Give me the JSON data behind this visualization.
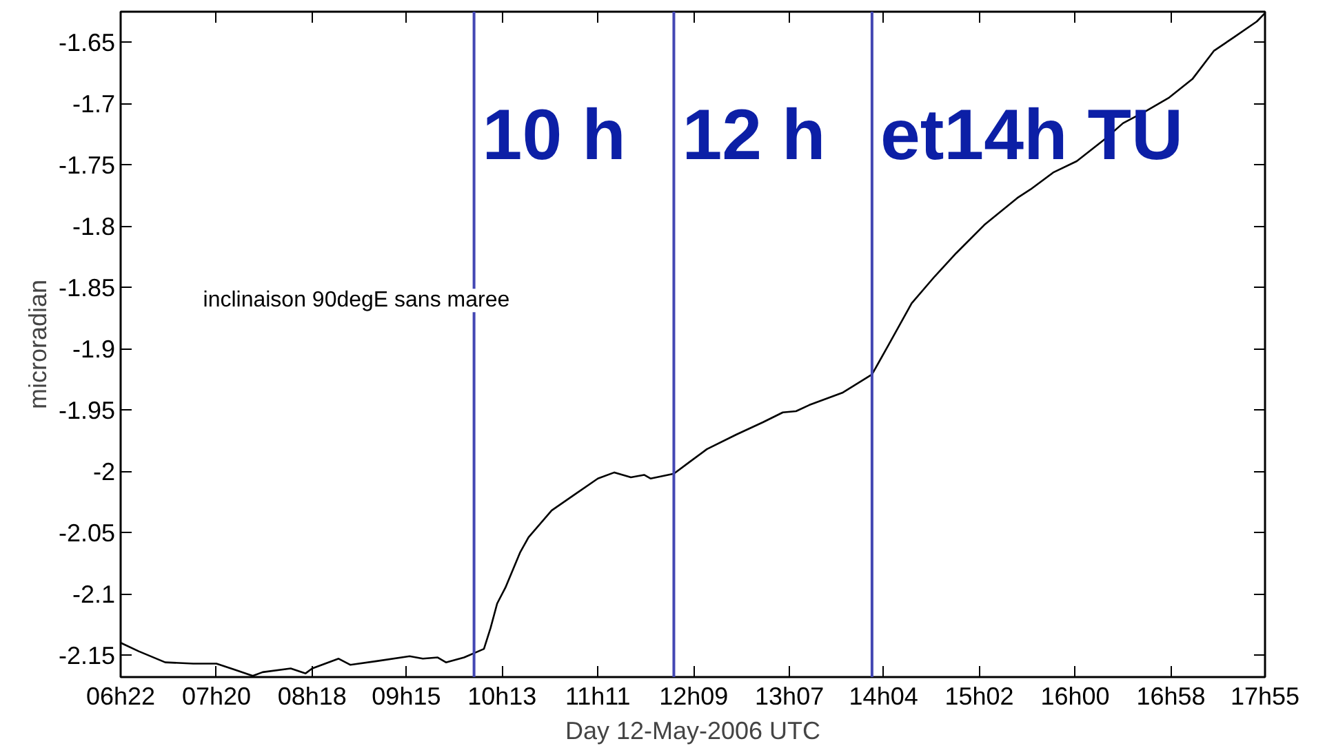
{
  "chart_data": {
    "type": "line",
    "xlabel": "Day 12-May-2006 UTC",
    "ylabel": "microradian",
    "line_style": "solid",
    "x": [
      "2006-05-12T06:22",
      "2006-05-12T06:33",
      "2006-05-12T06:49",
      "2006-05-12T07:06",
      "2006-05-12T07:20",
      "2006-05-12T07:31",
      "2006-05-12T07:42",
      "2006-05-12T07:48",
      "2006-05-12T08:05",
      "2006-05-12T08:14",
      "2006-05-12T08:18",
      "2006-05-12T08:34",
      "2006-05-12T08:41",
      "2006-05-12T08:57",
      "2006-05-12T09:17",
      "2006-05-12T09:25",
      "2006-05-12T09:34",
      "2006-05-12T09:39",
      "2006-05-12T09:50",
      "2006-05-12T10:02",
      "2006-05-12T10:06",
      "2006-05-12T10:10",
      "2006-05-12T10:15",
      "2006-05-12T10:24",
      "2006-05-12T10:29",
      "2006-05-12T10:43",
      "2006-05-12T10:57",
      "2006-05-12T11:11",
      "2006-05-12T11:21",
      "2006-05-12T11:31",
      "2006-05-12T11:39",
      "2006-05-12T11:43",
      "2006-05-12T11:50",
      "2006-05-12T11:57",
      "2006-05-12T12:07",
      "2006-05-12T12:17",
      "2006-05-12T12:35",
      "2006-05-12T12:51",
      "2006-05-12T13:03",
      "2006-05-12T13:11",
      "2006-05-12T13:19",
      "2006-05-12T13:39",
      "2006-05-12T13:57",
      "2006-05-12T14:07",
      "2006-05-12T14:21",
      "2006-05-12T14:35",
      "2006-05-12T14:48",
      "2006-05-12T15:05",
      "2006-05-12T15:25",
      "2006-05-12T15:33",
      "2006-05-12T15:47",
      "2006-05-12T16:01",
      "2006-05-12T16:18",
      "2006-05-12T16:29",
      "2006-05-12T16:43",
      "2006-05-12T16:57",
      "2006-05-12T17:11",
      "2006-05-12T17:24",
      "2006-05-12T17:36",
      "2006-05-12T17:50",
      "2006-05-12T17:55"
    ],
    "series": [
      {
        "color": "#000000",
        "values": [
          -2.14,
          -2.147,
          -2.156,
          -2.157,
          -2.157,
          -2.162,
          -2.167,
          -2.164,
          -2.161,
          -2.165,
          -2.161,
          -2.153,
          -2.158,
          -2.155,
          -2.151,
          -2.153,
          -2.152,
          -2.156,
          -2.152,
          -2.145,
          -2.128,
          -2.108,
          -2.095,
          -2.066,
          -2.054,
          -2.032,
          -2.019,
          -2.006,
          -2.001,
          -2.005,
          -2.003,
          -2.006,
          -2.004,
          -2.002,
          -1.992,
          -1.982,
          -1.97,
          -1.96,
          -1.952,
          -1.951,
          -1.946,
          -1.936,
          -1.921,
          -1.897,
          -1.863,
          -1.841,
          -1.822,
          -1.799,
          -1.777,
          -1.77,
          -1.756,
          -1.747,
          -1.729,
          -1.716,
          -1.706,
          -1.695,
          -1.68,
          -1.657,
          -1.646,
          -1.633,
          -1.626
        ]
      }
    ],
    "xlim": [
      "2006-05-12T06:22",
      "2006-05-12T17:55"
    ],
    "xticks": [
      {
        "value": "2006-05-12T06:22",
        "label": "06h22"
      },
      {
        "value": "2006-05-12T07:20",
        "label": "07h20"
      },
      {
        "value": "2006-05-12T08:18",
        "label": "08h18"
      },
      {
        "value": "2006-05-12T09:15",
        "label": "09h15"
      },
      {
        "value": "2006-05-12T10:13",
        "label": "10h13"
      },
      {
        "value": "2006-05-12T11:11",
        "label": "11h11"
      },
      {
        "value": "2006-05-12T12:09",
        "label": "12h09"
      },
      {
        "value": "2006-05-12T13:07",
        "label": "13h07"
      },
      {
        "value": "2006-05-12T14:04",
        "label": "14h04"
      },
      {
        "value": "2006-05-12T15:02",
        "label": "15h02"
      },
      {
        "value": "2006-05-12T16:00",
        "label": "16h00"
      },
      {
        "value": "2006-05-12T16:58",
        "label": "16h58"
      },
      {
        "value": "2006-05-12T17:55",
        "label": "17h55"
      }
    ],
    "ylim": [
      -2.168,
      -1.625
    ],
    "yticks": [
      -1.65,
      -1.7,
      -1.75,
      -1.8,
      -1.85,
      -1.9,
      -1.95,
      -2,
      -2.05,
      -2.1,
      -2.15
    ],
    "ref_lines": [
      {
        "axis": "x",
        "value": "2006-05-12T09:56",
        "label": "10 h",
        "color": "#4347b3"
      },
      {
        "axis": "x",
        "value": "2006-05-12T11:57",
        "label": "12 h",
        "color": "#4347b3"
      },
      {
        "axis": "x",
        "value": "2006-05-12T13:57",
        "label": "et14h TU",
        "color": "#4347b3"
      }
    ],
    "annotations": [
      "inclinaison 90degE sans maree"
    ]
  }
}
